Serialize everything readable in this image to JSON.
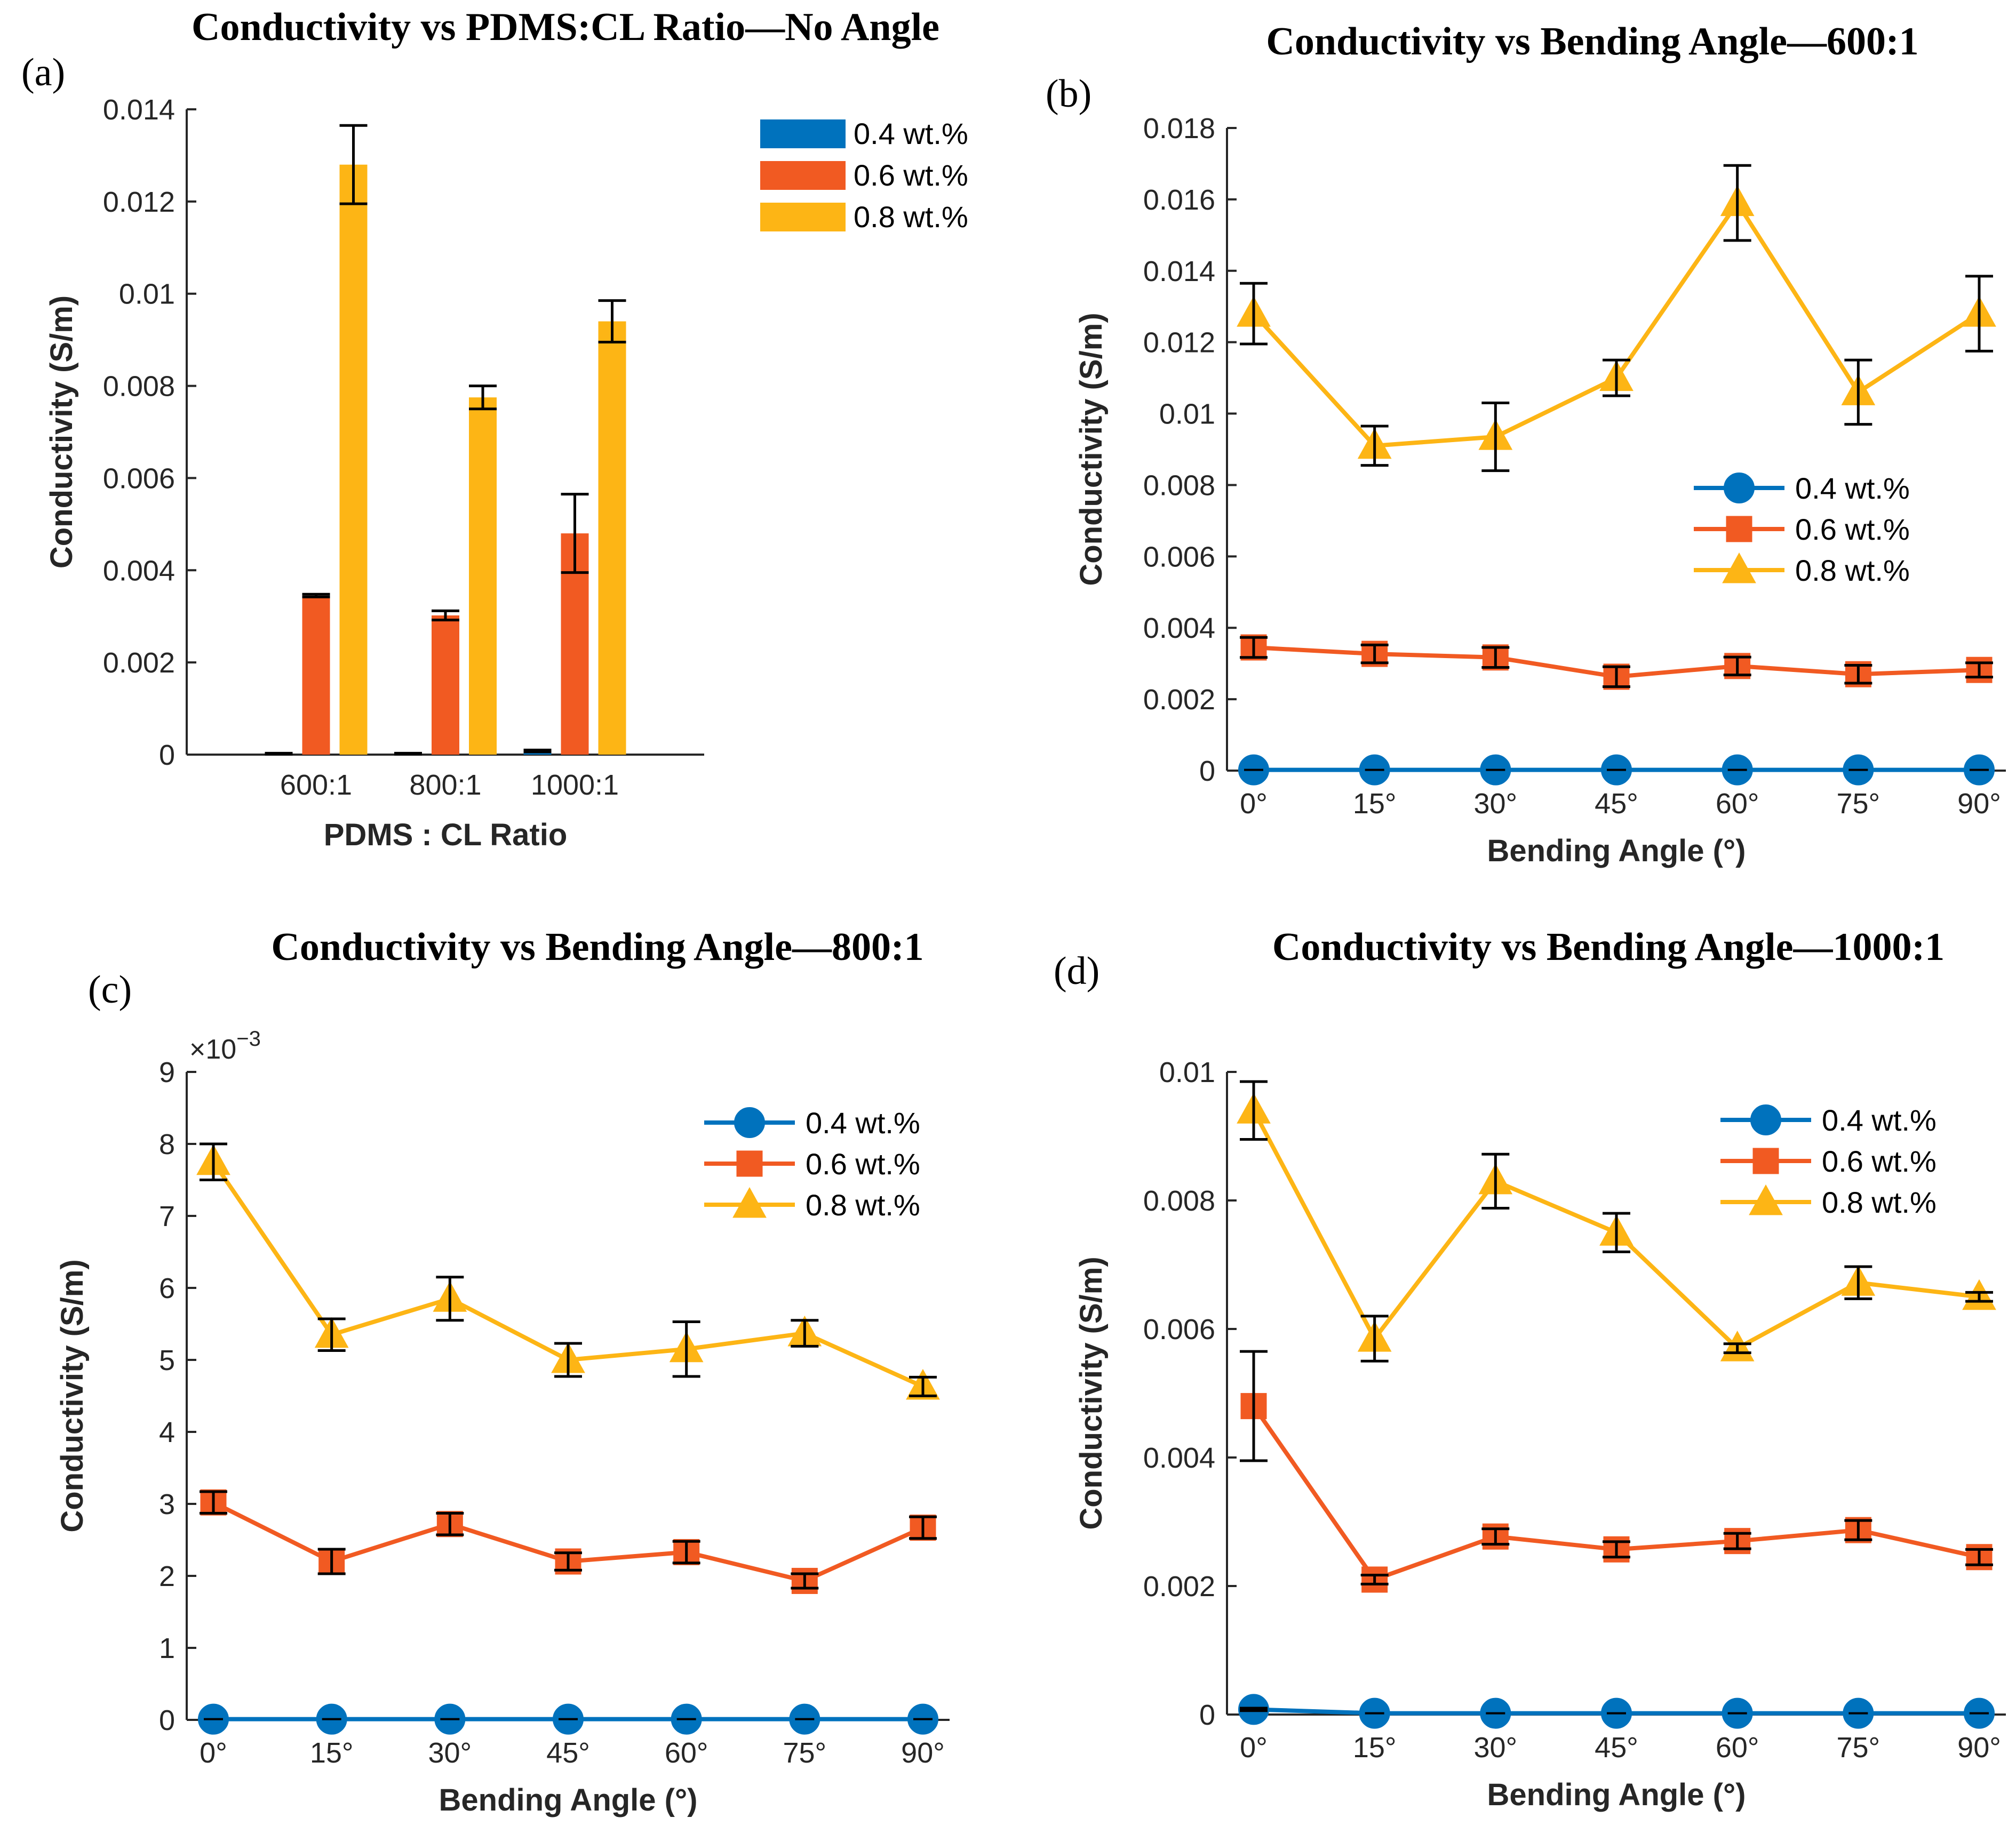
{
  "panels": {
    "a": {
      "label": "(a)",
      "title": "Conductivity vs PDMS:CL Ratio—No Angle"
    },
    "b": {
      "label": "(b)",
      "title": "Conductivity vs Bending Angle—600:1"
    },
    "c": {
      "label": "(c)",
      "title": "Conductivity vs Bending Angle—800:1"
    },
    "d": {
      "label": "(d)",
      "title": "Conductivity vs Bending Angle—1000:1"
    }
  },
  "colors": {
    "s04": "#0072BD",
    "s06": "#F15A22",
    "s08": "#FDB515"
  },
  "chart_data": [
    {
      "type": "bar",
      "title": "Conductivity vs PDMS:CL Ratio—No Angle",
      "xlabel": "PDMS : CL Ratio",
      "ylabel": "Conductivity (S/m)",
      "categories": [
        "600:1",
        "800:1",
        "1000:1"
      ],
      "ylim": [
        0,
        0.014
      ],
      "yticks": [
        "0",
        "0.002",
        "0.004",
        "0.006",
        "0.008",
        "0.01",
        "0.012",
        "0.014"
      ],
      "legend_position": "top-right",
      "series": [
        {
          "name": "0.4 wt.%",
          "values": [
            2e-05,
            2e-05,
            8e-05
          ],
          "errors": [
            1e-05,
            1e-05,
            2e-05
          ]
        },
        {
          "name": "0.6 wt.%",
          "values": [
            0.00345,
            0.00302,
            0.0048
          ],
          "errors": [
            3e-05,
            0.0001,
            0.00085
          ]
        },
        {
          "name": "0.8 wt.%",
          "values": [
            0.0128,
            0.00775,
            0.0094
          ],
          "errors": [
            0.00085,
            0.00025,
            0.00045
          ]
        }
      ]
    },
    {
      "type": "line",
      "title": "Conductivity vs Bending Angle—600:1",
      "xlabel": "Bending Angle (°)",
      "ylabel": "Conductivity (S/m)",
      "categories": [
        "0°",
        "15°",
        "30°",
        "45°",
        "60°",
        "75°",
        "90°"
      ],
      "ylim": [
        0,
        0.018
      ],
      "yticks": [
        "0",
        "0.002",
        "0.004",
        "0.006",
        "0.008",
        "0.01",
        "0.012",
        "0.014",
        "0.016",
        "0.018"
      ],
      "legend_position": "middle-right",
      "series": [
        {
          "name": "0.4 wt.%",
          "values": [
            2e-05,
            2e-05,
            2e-05,
            2e-05,
            2e-05,
            2e-05,
            2e-05
          ],
          "errors": [
            0,
            0,
            0,
            0,
            0,
            0,
            0
          ]
        },
        {
          "name": "0.6 wt.%",
          "values": [
            0.00345,
            0.00327,
            0.00317,
            0.00263,
            0.00293,
            0.0027,
            0.00282
          ],
          "errors": [
            0.00028,
            0.00025,
            0.00028,
            0.00028,
            0.00025,
            0.00025,
            0.0002
          ]
        },
        {
          "name": "0.8 wt.%",
          "values": [
            0.0128,
            0.0091,
            0.00935,
            0.011,
            0.0159,
            0.0106,
            0.0128
          ],
          "errors": [
            0.00085,
            0.00055,
            0.00095,
            0.0005,
            0.00105,
            0.0009,
            0.00105
          ]
        }
      ]
    },
    {
      "type": "line",
      "title": "Conductivity vs Bending Angle—800:1",
      "xlabel": "Bending Angle (°)",
      "ylabel": "Conductivity (S/m)",
      "exponent_base": "×10",
      "exponent_power": "−3",
      "categories": [
        "0°",
        "15°",
        "30°",
        "45°",
        "60°",
        "75°",
        "90°"
      ],
      "ylim": [
        0,
        9
      ],
      "yticks": [
        "0",
        "1",
        "2",
        "3",
        "4",
        "5",
        "6",
        "7",
        "8",
        "9"
      ],
      "legend_position": "top-right",
      "series": [
        {
          "name": "0.4 wt.%",
          "values": [
            0.01,
            0.01,
            0.01,
            0.01,
            0.01,
            0.01,
            0.01
          ],
          "errors": [
            0,
            0,
            0,
            0,
            0,
            0,
            0
          ]
        },
        {
          "name": "0.6 wt.%",
          "values": [
            3.02,
            2.2,
            2.72,
            2.2,
            2.33,
            1.93,
            2.67
          ],
          "errors": [
            0.15,
            0.17,
            0.15,
            0.12,
            0.15,
            0.1,
            0.15
          ]
        },
        {
          "name": "0.8 wt.%",
          "values": [
            7.75,
            5.35,
            5.85,
            5.0,
            5.15,
            5.37,
            4.63
          ],
          "errors": [
            0.25,
            0.22,
            0.3,
            0.23,
            0.38,
            0.18,
            0.13
          ]
        }
      ]
    },
    {
      "type": "line",
      "title": "Conductivity vs Bending Angle—1000:1",
      "xlabel": "Bending Angle (°)",
      "ylabel": "Conductivity (S/m)",
      "categories": [
        "0°",
        "15°",
        "30°",
        "45°",
        "60°",
        "75°",
        "90°"
      ],
      "ylim": [
        0,
        0.01
      ],
      "yticks": [
        "0",
        "0.002",
        "0.004",
        "0.006",
        "0.008",
        "0.01"
      ],
      "legend_position": "top-right",
      "series": [
        {
          "name": "0.4 wt.%",
          "values": [
            8e-05,
            2e-05,
            2e-05,
            2e-05,
            2e-05,
            2e-05,
            2e-05
          ],
          "errors": [
            2e-05,
            0,
            0,
            0,
            0,
            0,
            0
          ]
        },
        {
          "name": "0.6 wt.%",
          "values": [
            0.0048,
            0.0021,
            0.00277,
            0.00257,
            0.0027,
            0.00287,
            0.00245
          ],
          "errors": [
            0.00085,
            7e-05,
            0.00012,
            0.00012,
            0.00012,
            0.00015,
            0.00012
          ]
        },
        {
          "name": "0.8 wt.%",
          "values": [
            0.0094,
            0.00585,
            0.0083,
            0.0075,
            0.0057,
            0.00672,
            0.0065
          ],
          "errors": [
            0.00045,
            0.00035,
            0.00042,
            0.0003,
            7e-05,
            0.00025,
            7e-05
          ]
        }
      ]
    }
  ]
}
